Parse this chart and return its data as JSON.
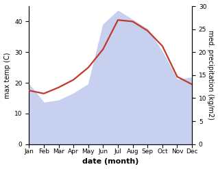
{
  "months": [
    "Jan",
    "Feb",
    "Mar",
    "Apr",
    "May",
    "Jun",
    "Jul",
    "Aug",
    "Sep",
    "Oct",
    "Nov",
    "Dec"
  ],
  "temp": [
    17.5,
    16.5,
    18.5,
    21.0,
    25.0,
    31.0,
    40.5,
    40.0,
    37.0,
    32.0,
    22.0,
    19.5
  ],
  "precip": [
    13.0,
    9.0,
    9.5,
    11.0,
    13.0,
    26.0,
    29.0,
    27.0,
    25.0,
    20.0,
    14.0,
    14.5
  ],
  "temp_color": "#c0392b",
  "precip_fill_color": "#c8d0f0",
  "temp_ylim": [
    0,
    45
  ],
  "precip_ylim": [
    0,
    30
  ],
  "temp_yticks": [
    0,
    10,
    20,
    30,
    40
  ],
  "precip_yticks": [
    0,
    5,
    10,
    15,
    20,
    25,
    30
  ],
  "xlabel": "date (month)",
  "ylabel_left": "max temp (C)",
  "ylabel_right": "med. precipitation (kg/m2)",
  "ylabel_right_rotation": 270,
  "ylabel_right_labelpad": 8,
  "temp_linewidth": 1.6,
  "xlabel_fontsize": 8,
  "ylabel_fontsize": 7,
  "tick_fontsize": 6.5
}
